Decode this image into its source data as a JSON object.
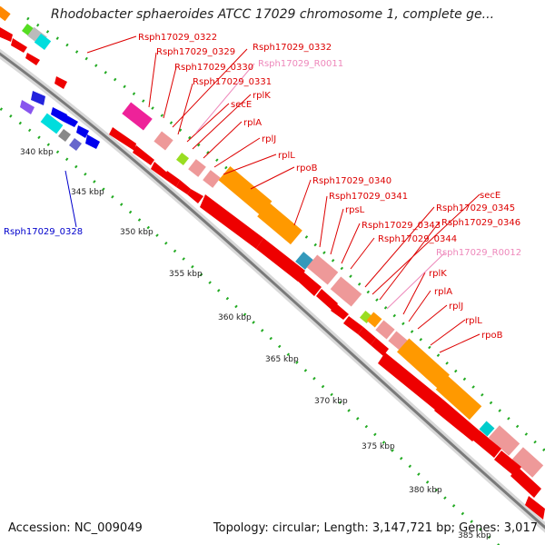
{
  "title": "Rhodobacter sphaeroides ATCC 17029 chromosome 1, complete ge...",
  "footer": {
    "accession": "Accession: NC_009049",
    "summary": "Topology: circular; Length: 3,147,721 bp; Genes: 3,017"
  },
  "tick_labels": [
    "340 kbp",
    "345 kbp",
    "350 kbp",
    "355 kbp",
    "360 kbp",
    "365 kbp",
    "370 kbp",
    "375 kbp",
    "380 kbp",
    "385 kbp"
  ],
  "gene_labels": [
    {
      "text": "Rsph17029_0322",
      "color": "#dd0000"
    },
    {
      "text": "Rsph17029_0329",
      "color": "#dd0000"
    },
    {
      "text": "Rsph17029_0332",
      "color": "#dd0000"
    },
    {
      "text": "Rsph17029_0330",
      "color": "#dd0000"
    },
    {
      "text": "Rsph17029_R0011",
      "color": "#ee88bb"
    },
    {
      "text": "Rsph17029_0331",
      "color": "#dd0000"
    },
    {
      "text": "rplK",
      "color": "#dd0000"
    },
    {
      "text": "secE",
      "color": "#dd0000"
    },
    {
      "text": "rplA",
      "color": "#dd0000"
    },
    {
      "text": "rplJ",
      "color": "#dd0000"
    },
    {
      "text": "rplL",
      "color": "#dd0000"
    },
    {
      "text": "rpoB",
      "color": "#dd0000"
    },
    {
      "text": "Rsph17029_0340",
      "color": "#dd0000"
    },
    {
      "text": "Rsph17029_0341",
      "color": "#dd0000"
    },
    {
      "text": "rpsL",
      "color": "#dd0000"
    },
    {
      "text": "secE",
      "color": "#dd0000"
    },
    {
      "text": "Rsph17029_0345",
      "color": "#dd0000"
    },
    {
      "text": "Rsph17029_0343",
      "color": "#dd0000"
    },
    {
      "text": "Rsph17029_0346",
      "color": "#dd0000"
    },
    {
      "text": "Rsph17029_0344",
      "color": "#dd0000"
    },
    {
      "text": "Rsph17029_R0012",
      "color": "#ee88bb"
    },
    {
      "text": "rplK",
      "color": "#dd0000"
    },
    {
      "text": "rplA",
      "color": "#dd0000"
    },
    {
      "text": "rplJ",
      "color": "#dd0000"
    },
    {
      "text": "rplL",
      "color": "#dd0000"
    },
    {
      "text": "rpoB",
      "color": "#dd0000"
    },
    {
      "text": "Rsph17029_0328",
      "color": "#0000cc"
    }
  ],
  "colors": {
    "forward_gene": "#ee0000",
    "reverse_gene": "#0000ee",
    "rRNA": "#ff8800",
    "tRNA": "#00cccc",
    "protein_pink": "#ee9999",
    "magenta": "#ee2299",
    "backbone": "#888888",
    "tick_dots": "#22aa22"
  }
}
